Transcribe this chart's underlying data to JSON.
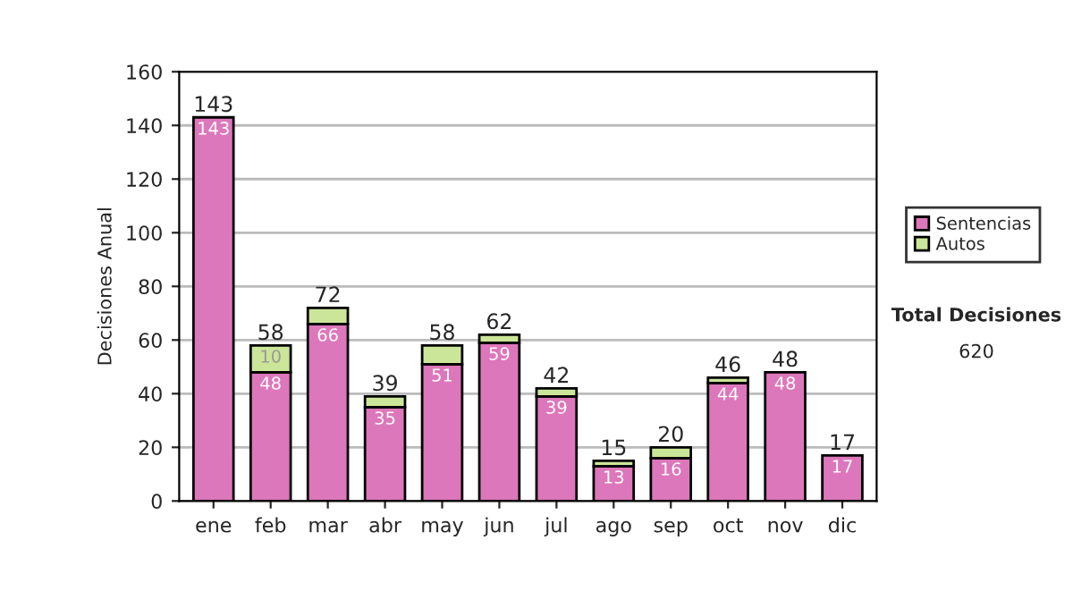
{
  "chart_data": {
    "type": "bar",
    "stacked": true,
    "ylabel": "Decisiones Anual",
    "categories": [
      "ene",
      "feb",
      "mar",
      "abr",
      "may",
      "jun",
      "jul",
      "ago",
      "sep",
      "oct",
      "nov",
      "dic"
    ],
    "series": [
      {
        "name": "Sentencias",
        "color": "#dd77bb",
        "values": [
          143,
          48,
          66,
          35,
          51,
          59,
          39,
          13,
          16,
          44,
          48,
          17
        ],
        "value_labels": [
          "143",
          "48",
          "66",
          "35",
          "51",
          "59",
          "39",
          "13",
          "16",
          "44",
          "48",
          "17"
        ]
      },
      {
        "name": "Autos",
        "color": "#cce699",
        "values": [
          0,
          10,
          6,
          4,
          7,
          3,
          3,
          2,
          4,
          2,
          0,
          0
        ],
        "value_labels": [
          null,
          "10",
          null,
          null,
          null,
          null,
          null,
          null,
          null,
          null,
          null,
          null
        ]
      }
    ],
    "totals": [
      "143",
      "58",
      "72",
      "39",
      "58",
      "62",
      "42",
      "15",
      "20",
      "46",
      "48",
      "17"
    ],
    "ylim": [
      0,
      160
    ],
    "yticks": [
      0,
      20,
      40,
      60,
      80,
      100,
      120,
      140,
      160
    ],
    "grid": "y",
    "legend": "right",
    "annotations": [
      "Total Decisiones",
      "620"
    ]
  }
}
